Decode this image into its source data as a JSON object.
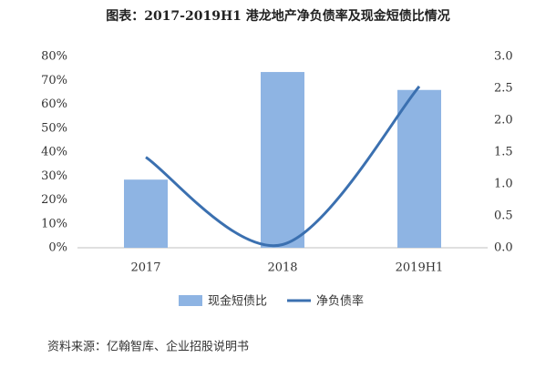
{
  "chart_data": {
    "type": "bar",
    "title": "图表：2017-2019H1 港龙地产净负债率及现金短债比情况",
    "source": "资料来源：亿翰智库、企业招股说明书",
    "categories": [
      "2017",
      "2018",
      "2019H1"
    ],
    "series": [
      {
        "name": "现金短债比",
        "type": "bar",
        "color": "#8eb4e3",
        "values": [
          28.5,
          73.5,
          66
        ]
      },
      {
        "name": "净负债率",
        "type": "line",
        "axis": "y2",
        "color": "#3b70b0",
        "values": [
          1.42,
          0.05,
          2.53
        ]
      }
    ],
    "ylim": [
      0,
      80
    ],
    "yticks": [
      {
        "value": 0,
        "label": "0%"
      },
      {
        "value": 10,
        "label": "10%"
      },
      {
        "value": 20,
        "label": "20%"
      },
      {
        "value": 30,
        "label": "30%"
      },
      {
        "value": 40,
        "label": "40%"
      },
      {
        "value": 50,
        "label": "50%"
      },
      {
        "value": 60,
        "label": "60%"
      },
      {
        "value": 70,
        "label": "70%"
      },
      {
        "value": 80,
        "label": "80%"
      }
    ],
    "y2lim": [
      0,
      3
    ],
    "y2ticks": [
      {
        "value": 0,
        "label": "0.0"
      },
      0.5,
      {
        "value": 1,
        "label": "1.0"
      },
      1.5,
      {
        "value": 2,
        "label": "2.0"
      },
      2.5,
      {
        "value": 3,
        "label": "3.0"
      }
    ],
    "grid": false,
    "legend": "bottom"
  }
}
